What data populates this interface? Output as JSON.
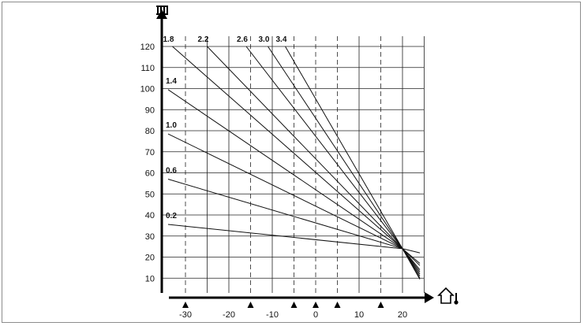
{
  "chart_data": {
    "type": "line",
    "title": "",
    "xlabel": "",
    "ylabel": "",
    "xlim": [
      -35,
      25
    ],
    "ylim": [
      5,
      125
    ],
    "x_ticks": [
      "-30",
      "-20",
      "-10",
      "0",
      "10",
      "20"
    ],
    "y_ticks": [
      "10",
      "20",
      "30",
      "40",
      "50",
      "60",
      "70",
      "80",
      "90",
      "100",
      "110",
      "120"
    ],
    "marker_positions": [
      -30,
      -15,
      -5,
      0,
      5,
      15
    ],
    "colors": {
      "lines": "#111111",
      "grid": "#222222",
      "frame": "#8c8c8c"
    },
    "icons": {
      "y_axis": "radiator-icon",
      "x_axis": "house-thermometer-icon",
      "x_markers": "triangle-marker-icon"
    },
    "series": [
      {
        "name": "0.2",
        "x": [
          -34,
          20,
          24
        ],
        "y": [
          35.5,
          24,
          22
        ]
      },
      {
        "name": "0.6",
        "x": [
          -34,
          20,
          24
        ],
        "y": [
          57,
          24,
          17
        ]
      },
      {
        "name": "1.0",
        "x": [
          -34,
          20,
          24
        ],
        "y": [
          78.5,
          24,
          16
        ]
      },
      {
        "name": "1.4",
        "x": [
          -34,
          20,
          24
        ],
        "y": [
          99.5,
          24,
          14
        ]
      },
      {
        "name": "1.8",
        "x": [
          -33,
          20,
          24
        ],
        "y": [
          120,
          24,
          13
        ]
      },
      {
        "name": "2.2",
        "x": [
          -25,
          20,
          24
        ],
        "y": [
          120,
          24,
          12
        ]
      },
      {
        "name": "2.6",
        "x": [
          -16,
          20,
          24
        ],
        "y": [
          120,
          24,
          11
        ]
      },
      {
        "name": "3.0",
        "x": [
          -11,
          20,
          24
        ],
        "y": [
          120,
          24,
          10
        ]
      },
      {
        "name": "3.4",
        "x": [
          -7,
          20,
          24
        ],
        "y": [
          120,
          24,
          9.5
        ]
      }
    ]
  }
}
